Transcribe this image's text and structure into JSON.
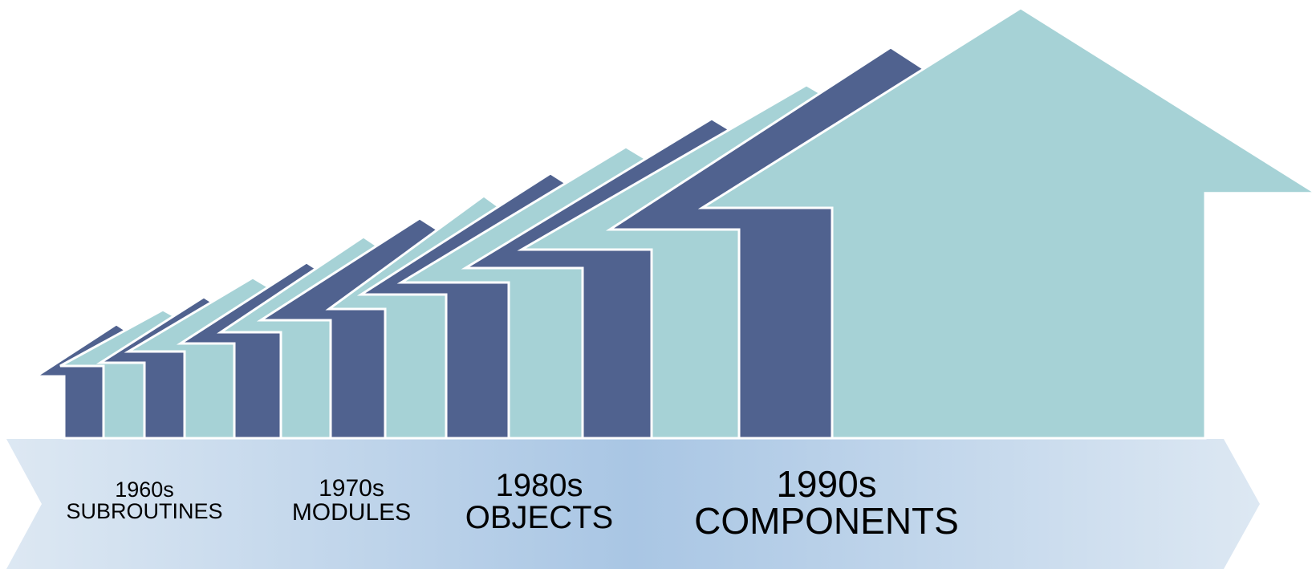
{
  "colors": {
    "dark_house": "#50628f",
    "light_house": "#a6d2d6",
    "house_outline": "#ffffff",
    "band_edge": "#dde8f3",
    "band_center": "#a9c6e4",
    "text": "#000000"
  },
  "eras": [
    {
      "decade": "1960s",
      "name": "SUBROUTINES"
    },
    {
      "decade": "1970s",
      "name": "MODULES"
    },
    {
      "decade": "1980s",
      "name": "OBJECTS"
    },
    {
      "decade": "1990s",
      "name": "COMPONENTS"
    }
  ]
}
